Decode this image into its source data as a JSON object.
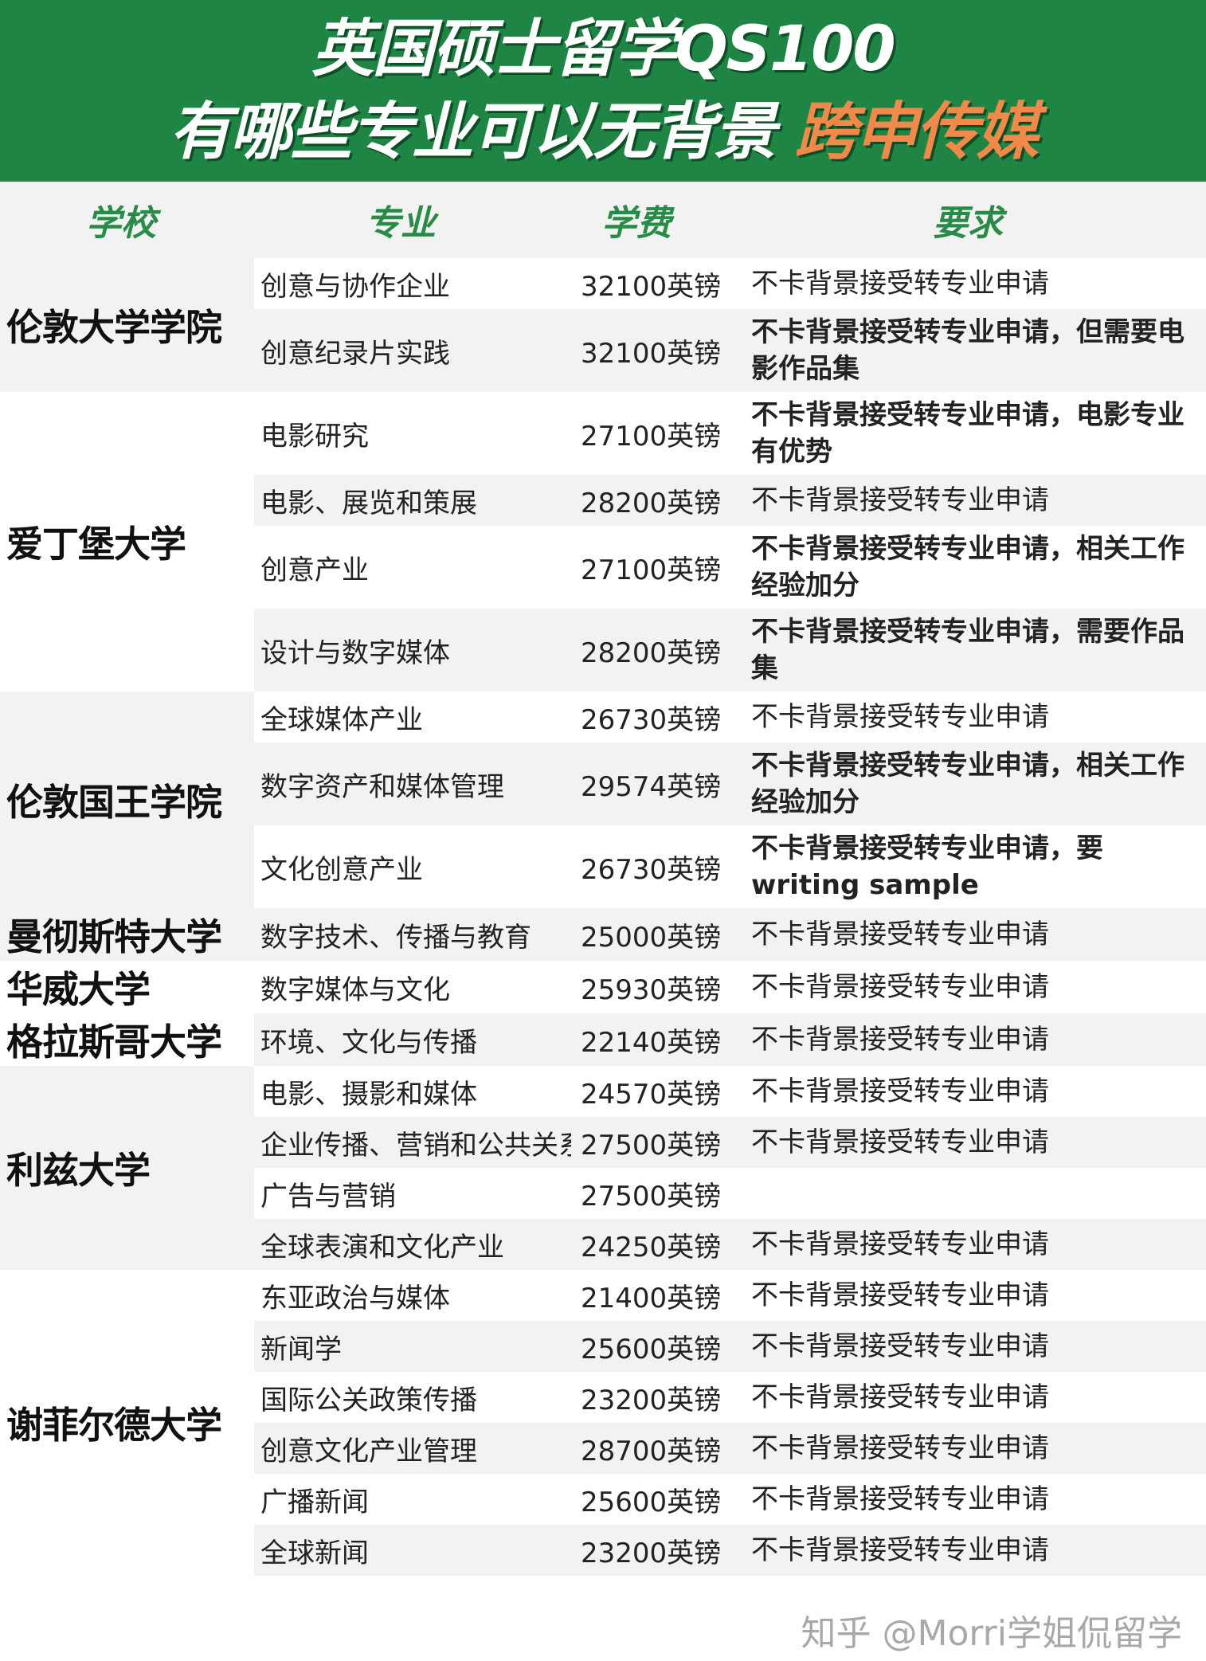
{
  "title": {
    "line1": "英国硕士留学QS100",
    "line2_main": "有哪些专业可以无背景 ",
    "line2_highlight": "跨申传媒"
  },
  "colors": {
    "banner": "#1e8545",
    "highlight_orange": "#f0894a",
    "accent_green_text": "#2a8a48",
    "row_alt": "#f2f2f2"
  },
  "headers": [
    "学校",
    "专业",
    "学费",
    "要求"
  ],
  "schools": [
    {
      "name": "伦敦大学学院",
      "shade": "g",
      "rows": [
        {
          "major": "创意与协作企业",
          "fee": "32100英镑",
          "req": "不卡背景接受转专业申请",
          "hl": false
        },
        {
          "major": "创意纪录片实践",
          "fee": "32100英镑",
          "req": "不卡背景接受转专业申请，但需要电影作品集",
          "hl": true
        }
      ]
    },
    {
      "name": "爱丁堡大学",
      "shade": "w",
      "rows": [
        {
          "major": "电影研究",
          "fee": "27100英镑",
          "req": "不卡背景接受转专业申请，电影专业有优势",
          "hl": true
        },
        {
          "major": "电影、展览和策展",
          "fee": "28200英镑",
          "req": "不卡背景接受转专业申请",
          "hl": false
        },
        {
          "major": "创意产业",
          "fee": "27100英镑",
          "req": "不卡背景接受转专业申请，相关工作经验加分",
          "hl": true
        },
        {
          "major": "设计与数字媒体",
          "fee": "28200英镑",
          "req": "不卡背景接受转专业申请，需要作品集",
          "hl": true
        }
      ]
    },
    {
      "name": "伦敦国王学院",
      "shade": "g",
      "rows": [
        {
          "major": "全球媒体产业",
          "fee": "26730英镑",
          "req": "不卡背景接受转专业申请",
          "hl": false
        },
        {
          "major": "数字资产和媒体管理",
          "fee": "29574英镑",
          "req": "不卡背景接受转专业申请，相关工作经验加分",
          "hl": true
        },
        {
          "major": "文化创意产业",
          "fee": "26730英镑",
          "req": "不卡背景接受转专业申请，要 writing sample",
          "hl": true
        }
      ]
    },
    {
      "name": "曼彻斯特大学",
      "shade": "g",
      "rows": [
        {
          "major": "数字技术、传播与教育",
          "fee": "25000英镑",
          "req": "不卡背景接受转专业申请",
          "hl": false
        }
      ]
    },
    {
      "name": "华威大学",
      "shade": "w",
      "rows": [
        {
          "major": "数字媒体与文化",
          "fee": "25930英镑",
          "req": "不卡背景接受转专业申请",
          "hl": false
        }
      ]
    },
    {
      "name": "格拉斯哥大学",
      "shade": "w",
      "rows": [
        {
          "major": "环境、文化与传播",
          "fee": "22140英镑",
          "req": "不卡背景接受转专业申请",
          "hl": false
        }
      ]
    },
    {
      "name": "利兹大学",
      "shade": "g",
      "rows": [
        {
          "major": "电影、摄影和媒体",
          "fee": "24570英镑",
          "req": "不卡背景接受转专业申请",
          "hl": false
        },
        {
          "major": "企业传播、营销和公共关系",
          "fee": "27500英镑",
          "req": "不卡背景接受转专业申请",
          "hl": false
        },
        {
          "major": "广告与营销",
          "fee": "27500英镑",
          "req": "",
          "hl": false
        },
        {
          "major": "全球表演和文化产业",
          "fee": "24250英镑",
          "req": "不卡背景接受转专业申请",
          "hl": false
        }
      ]
    },
    {
      "name": "谢菲尔德大学",
      "shade": "w",
      "rows": [
        {
          "major": "东亚政治与媒体",
          "fee": "21400英镑",
          "req": "不卡背景接受转专业申请",
          "hl": false
        },
        {
          "major": "新闻学",
          "fee": "25600英镑",
          "req": "不卡背景接受转专业申请",
          "hl": false
        },
        {
          "major": "国际公关政策传播",
          "fee": "23200英镑",
          "req": "不卡背景接受转专业申请",
          "hl": false
        },
        {
          "major": "创意文化产业管理",
          "fee": "28700英镑",
          "req": "不卡背景接受转专业申请",
          "hl": false
        },
        {
          "major": "广播新闻",
          "fee": "25600英镑",
          "req": "不卡背景接受转专业申请",
          "hl": false
        },
        {
          "major": "全球新闻",
          "fee": "23200英镑",
          "req": "不卡背景接受转专业申请",
          "hl": false
        }
      ]
    }
  ],
  "watermark": "知乎 @Morri学姐侃留学"
}
